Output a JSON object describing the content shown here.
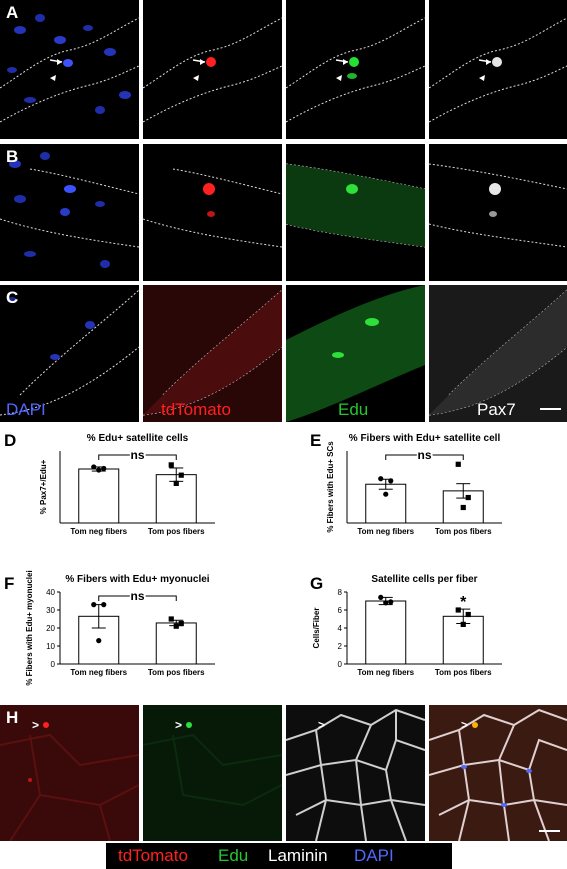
{
  "panel_letters": [
    "A",
    "B",
    "C",
    "D",
    "E",
    "F",
    "G",
    "H"
  ],
  "channels": {
    "dapi": {
      "label": "DAPI",
      "color": "#4a62ff"
    },
    "tdtomato": {
      "label": "tdTomato",
      "color": "#ff1a1a"
    },
    "edu": {
      "label": "Edu",
      "color": "#22c832"
    },
    "pax7": {
      "label": "Pax7",
      "color": "#ffffff"
    },
    "laminin": {
      "label": "Laminin",
      "color": "#ffffff"
    }
  },
  "legend_h": [
    "tdTomato",
    "Edu",
    "Laminin",
    "DAPI"
  ],
  "charts": {
    "D": {
      "chart_data": {
        "type": "bar",
        "title": "% Edu+ satellite cells",
        "ylabel": "% Pax7+/Edu+",
        "categories": [
          "Tom neg fibers",
          "Tom pos fibers"
        ],
        "values": [
          10.5,
          9.4
        ],
        "errors": [
          0.4,
          1.3
        ],
        "points": [
          [
            10.9,
            10.6,
            10.3
          ],
          [
            11.3,
            9.3,
            7.7
          ]
        ],
        "ylim": [
          0,
          14
        ],
        "significance": "ns",
        "y_ticks_shown": false
      }
    },
    "E": {
      "chart_data": {
        "type": "bar",
        "title": "% Fibers with Edu+ satellite cell",
        "ylabel": "% Fibers with Edu+ SCs",
        "categories": [
          "Tom neg fibers",
          "Tom pos fibers"
        ],
        "values": [
          35,
          29
        ],
        "errors": [
          4.5,
          6.5
        ],
        "points": [
          [
            40,
            38,
            26
          ],
          [
            53,
            23,
            14
          ]
        ],
        "ylim": [
          0,
          65
        ],
        "significance": "ns",
        "y_ticks_shown": false
      }
    },
    "F": {
      "chart_data": {
        "type": "bar",
        "title": "% Fibers with Edu+ myonuclei",
        "ylabel": "% Fibers with Edu+ myonuclei",
        "categories": [
          "Tom neg fibers",
          "Tom pos fibers"
        ],
        "values": [
          26.5,
          22.8
        ],
        "errors": [
          6.5,
          1.5
        ],
        "points": [
          [
            33,
            33,
            13
          ],
          [
            25,
            22.5,
            21
          ]
        ],
        "ylim": [
          0,
          40
        ],
        "yticks": [
          0,
          10,
          20,
          30,
          40
        ],
        "significance": "ns",
        "y_ticks_shown": true
      }
    },
    "G": {
      "chart_data": {
        "type": "bar",
        "title": "Satellite cells per fiber",
        "ylabel": "Cells/Fiber",
        "categories": [
          "Tom neg fibers",
          "Tom pos fibers"
        ],
        "values": [
          7.0,
          5.3
        ],
        "errors": [
          0.4,
          0.8
        ],
        "points": [
          [
            7.4,
            6.9,
            6.8
          ],
          [
            6.0,
            5.5,
            4.4
          ]
        ],
        "ylim": [
          0,
          8
        ],
        "yticks": [
          0,
          2,
          4,
          6,
          8
        ],
        "significance": "*",
        "y_ticks_shown": true
      }
    }
  }
}
